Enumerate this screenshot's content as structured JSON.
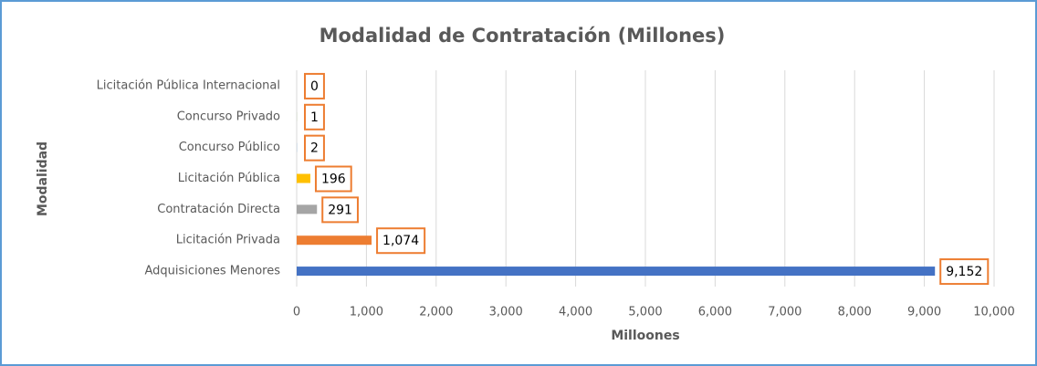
{
  "chart_data": {
    "type": "hbar",
    "title": "Modalidad de Contratación (Millones)",
    "x_label": "Milloones",
    "y_label": "Modalidad",
    "categories": [
      "Adquisiciones Menores",
      "Licitación Privada",
      "Contratación Directa",
      "Licitación Pública",
      "Concurso Público",
      "Concurso Privado",
      "Licitación Pública Internacional"
    ],
    "values": [
      9152,
      1074,
      291,
      196,
      2,
      1,
      0
    ],
    "value_labels": [
      "9,152",
      "1,074",
      "291",
      "196",
      "2",
      "1",
      "0"
    ],
    "colors": [
      "#4472c4",
      "#ed7d31",
      "#a5a5a5",
      "#ffc000",
      "#5b9bd5",
      "#70ad47",
      "#264478"
    ],
    "xlim": [
      0,
      10000
    ],
    "xticks": [
      0,
      {
        "value": 1000,
        "label": "1,000"
      },
      {
        "value": 2000,
        "label": "2,000"
      },
      {
        "value": 3000,
        "label": "3,000"
      },
      {
        "value": 4000,
        "label": "4,000"
      },
      {
        "value": 5000,
        "label": "5,000"
      },
      {
        "value": 6000,
        "label": "6,000"
      },
      {
        "value": 7000,
        "label": "7,000"
      },
      {
        "value": 8000,
        "label": "8,000"
      },
      {
        "value": 9000,
        "label": "9,000"
      },
      {
        "value": 10000,
        "label": "10,000"
      }
    ],
    "grid": true
  }
}
